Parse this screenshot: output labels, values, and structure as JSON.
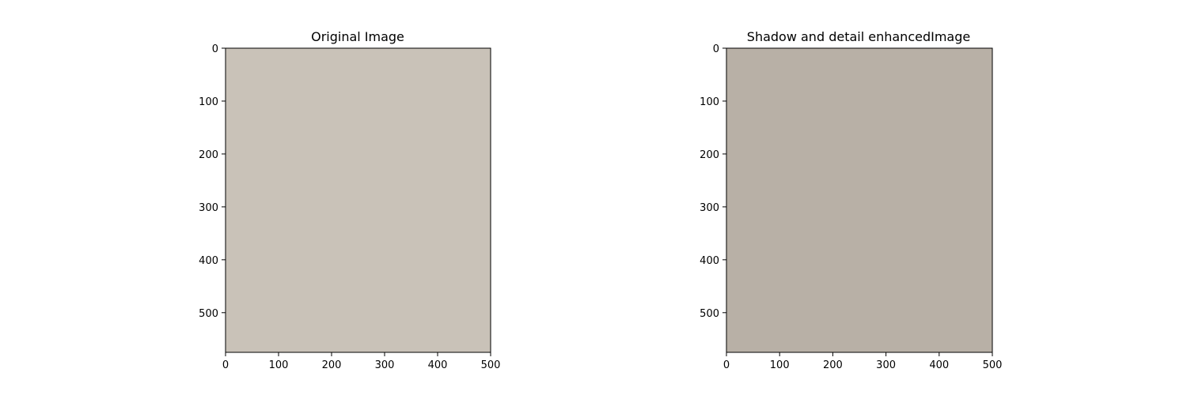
{
  "figure": {
    "panels": [
      {
        "title": "Original Image",
        "xlim": [
          0,
          500
        ],
        "ylim": [
          0,
          575
        ],
        "xticks": [
          0,
          100,
          200,
          300,
          400,
          500
        ],
        "yticks": [
          0,
          100,
          200,
          300,
          400,
          500
        ],
        "placeholder_color": "#c9c2b8"
      },
      {
        "title": "Shadow and detail enhancedImage",
        "xlim": [
          0,
          500
        ],
        "ylim": [
          0,
          575
        ],
        "xticks": [
          0,
          100,
          200,
          300,
          400,
          500
        ],
        "yticks": [
          0,
          100,
          200,
          300,
          400,
          500
        ],
        "placeholder_color": "#b8b0a6"
      }
    ]
  }
}
